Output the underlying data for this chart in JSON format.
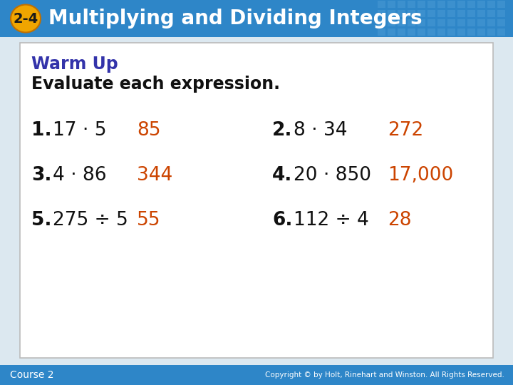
{
  "header_bg_color": "#2e86c8",
  "header_text": "Multiplying and Dividing Integers",
  "header_badge": "2-4",
  "header_badge_bg": "#f0a500",
  "header_text_color": "#ffffff",
  "body_bg": "#dce8f0",
  "content_bg": "#ffffff",
  "warm_up_title": "Warm Up",
  "warm_up_title_color": "#3333aa",
  "subtitle": "Evaluate each expression.",
  "subtitle_color": "#111111",
  "footer_bg": "#2e86c8",
  "footer_left": "Course 2",
  "footer_right": "Copyright © by Holt, Rinehart and Winston. All Rights Reserved.",
  "footer_text_color": "#ffffff",
  "answer_color": "#cc4400",
  "problem_color": "#111111",
  "number_color": "#111111",
  "problems": [
    {
      "num": "1.",
      "expr": "17 · 5",
      "answer": "85",
      "col": 0,
      "row": 0
    },
    {
      "num": "2.",
      "expr": "8 · 34",
      "answer": "272",
      "col": 1,
      "row": 0
    },
    {
      "num": "3.",
      "expr": "4 · 86",
      "answer": "344",
      "col": 0,
      "row": 1
    },
    {
      "num": "4.",
      "expr": "20 · 850",
      "answer": "17,000",
      "col": 1,
      "row": 1
    },
    {
      "num": "5.",
      "expr": "275 ÷ 5",
      "answer": "55",
      "col": 0,
      "row": 2
    },
    {
      "num": "6.",
      "expr": "112 ÷ 4",
      "answer": "28",
      "col": 1,
      "row": 2
    }
  ]
}
